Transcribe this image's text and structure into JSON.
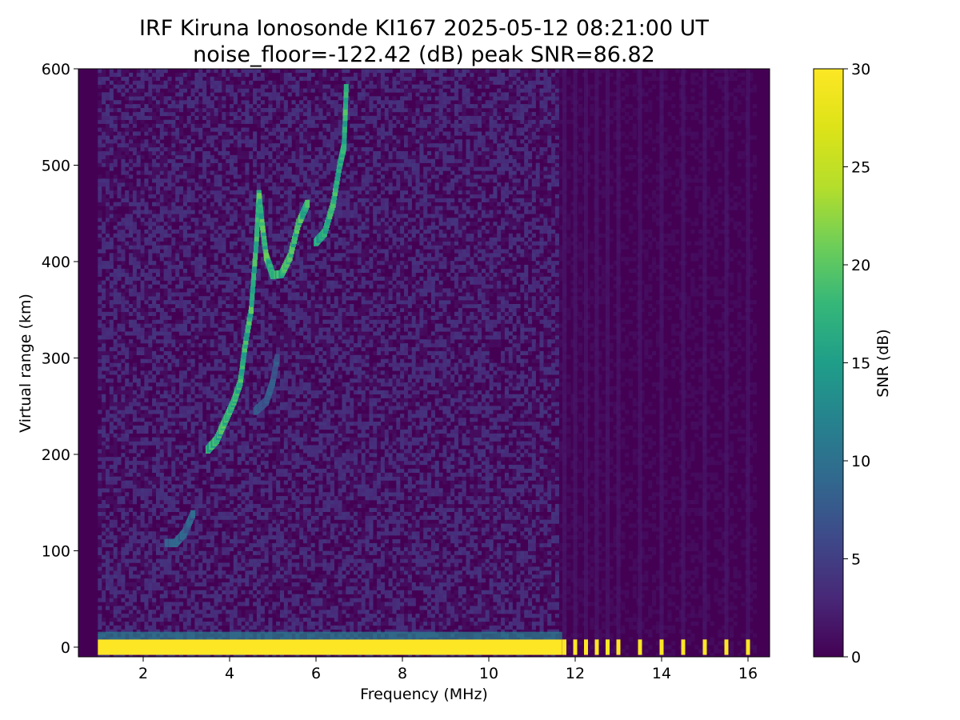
{
  "chart_data": {
    "type": "heatmap",
    "title": "IRF Kiruna Ionosonde KI167 2025-05-12 08:21:00  UT",
    "subtitle": "noise_floor=-122.42 (dB) peak SNR=86.82",
    "xlabel": "Frequency (MHz)",
    "ylabel": "Virtual range (km)",
    "colorbar_label": "SNR (dB)",
    "colormap": "viridis",
    "xlim": [
      0.5,
      16.5
    ],
    "ylim": [
      -10,
      600
    ],
    "clim": [
      0,
      30
    ],
    "x_ticks": [
      2,
      4,
      6,
      8,
      10,
      12,
      14,
      16
    ],
    "y_ticks": [
      0,
      100,
      200,
      300,
      400,
      500,
      600
    ],
    "colorbar_ticks": [
      0,
      5,
      10,
      15,
      20,
      25,
      30
    ],
    "data_x_range_mhz": [
      0.95,
      16.2
    ],
    "echo_traces": [
      {
        "name": "ground-clutter",
        "points": [
          [
            0.95,
            0
          ],
          [
            3,
            0
          ],
          [
            5,
            0
          ],
          [
            7,
            0
          ],
          [
            9,
            0
          ],
          [
            11.7,
            0
          ]
        ],
        "snr": 30
      },
      {
        "name": "e-layer",
        "points": [
          [
            2.55,
            108
          ],
          [
            2.75,
            108
          ],
          [
            2.95,
            118
          ],
          [
            3.15,
            138
          ]
        ],
        "snr": 9
      },
      {
        "name": "f-layer-o-mode",
        "points": [
          [
            3.5,
            205
          ],
          [
            3.7,
            215
          ],
          [
            3.9,
            235
          ],
          [
            4.1,
            255
          ],
          [
            4.25,
            275
          ],
          [
            4.35,
            310
          ],
          [
            4.5,
            350
          ],
          [
            4.62,
            420
          ],
          [
            4.68,
            470
          ],
          [
            4.75,
            440
          ],
          [
            4.85,
            405
          ],
          [
            5.0,
            386
          ],
          [
            5.2,
            387
          ],
          [
            5.4,
            405
          ],
          [
            5.6,
            440
          ],
          [
            5.8,
            460
          ]
        ],
        "snr": 19
      },
      {
        "name": "f-layer-x-mode",
        "points": [
          [
            4.6,
            245
          ],
          [
            4.85,
            255
          ],
          [
            5.0,
            275
          ],
          [
            5.1,
            300
          ]
        ],
        "snr": 8
      },
      {
        "name": "f2-upper",
        "points": [
          [
            6.0,
            420
          ],
          [
            6.2,
            430
          ],
          [
            6.4,
            460
          ],
          [
            6.55,
            500
          ],
          [
            6.65,
            520
          ],
          [
            6.7,
            580
          ]
        ],
        "snr": 18
      }
    ],
    "interference_columns_mhz": [
      11.75,
      12.0,
      12.25,
      12.5,
      12.75,
      13.0,
      13.5,
      14.0,
      14.5,
      15.0,
      15.5,
      16.0
    ]
  }
}
